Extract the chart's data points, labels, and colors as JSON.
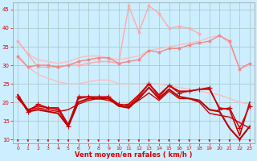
{
  "background_color": "#cceeff",
  "grid_color": "#aacccc",
  "xlabel": "Vent moyen/en rafales ( km/h )",
  "xlabel_color": "#dd0000",
  "tick_color": "#dd0000",
  "xlim": [
    -0.5,
    23.5
  ],
  "ylim": [
    9,
    47
  ],
  "yticks": [
    10,
    15,
    20,
    25,
    30,
    35,
    40,
    45
  ],
  "xticks": [
    0,
    1,
    2,
    3,
    4,
    5,
    6,
    7,
    8,
    9,
    10,
    11,
    12,
    13,
    14,
    15,
    16,
    17,
    18,
    19,
    20,
    21,
    22,
    23
  ],
  "series": [
    {
      "x": [
        0,
        1,
        2,
        3,
        4,
        5,
        6,
        7,
        8,
        9,
        10,
        11,
        12,
        13,
        14,
        15,
        16,
        17,
        18,
        19,
        20,
        21,
        22,
        23
      ],
      "y": [
        36.5,
        33.0,
        31.5,
        31.0,
        30.5,
        31.0,
        32.0,
        32.5,
        32.5,
        32.0,
        31.5,
        32.0,
        32.5,
        34.0,
        34.5,
        35.0,
        35.5,
        36.0,
        36.5,
        37.5,
        38.0,
        36.0,
        29.0,
        30.0
      ],
      "color": "#ffbbbb",
      "lw": 1.0,
      "marker": null
    },
    {
      "x": [
        0,
        1,
        2,
        3,
        4,
        5,
        6,
        7,
        8,
        9,
        10,
        11,
        12,
        13,
        14,
        15,
        16,
        17,
        18,
        19,
        20,
        21,
        22,
        23
      ],
      "y": [
        32.0,
        29.5,
        27.5,
        26.5,
        25.5,
        25.0,
        25.0,
        25.5,
        26.0,
        26.0,
        25.0,
        25.0,
        25.0,
        25.0,
        25.0,
        24.5,
        24.0,
        23.5,
        23.0,
        22.5,
        22.0,
        21.0,
        20.0,
        19.5
      ],
      "color": "#ffbbbb",
      "lw": 1.0,
      "marker": null
    },
    {
      "x": [
        0,
        1,
        2,
        3,
        4,
        5,
        6,
        7,
        8,
        9,
        10,
        11,
        12,
        13,
        14,
        15,
        16,
        17,
        18,
        19,
        20,
        21,
        22,
        23
      ],
      "y": [
        36.5,
        33.0,
        29.5,
        29.5,
        29.5,
        30.0,
        30.0,
        30.5,
        31.0,
        31.0,
        30.5,
        46.0,
        39.0,
        46.0,
        44.0,
        40.0,
        40.5,
        40.0,
        38.5,
        null,
        null,
        null,
        null,
        null
      ],
      "color": "#ffaaaa",
      "lw": 1.0,
      "marker": "o",
      "markersize": 2.0
    },
    {
      "x": [
        0,
        1,
        2,
        3,
        4,
        5,
        6,
        7,
        8,
        9,
        10,
        11,
        12,
        13,
        14,
        15,
        16,
        17,
        18,
        19,
        20,
        21,
        22,
        23
      ],
      "y": [
        32.5,
        29.5,
        30.0,
        30.0,
        29.5,
        30.0,
        31.0,
        31.5,
        32.0,
        32.0,
        30.5,
        31.0,
        31.5,
        34.0,
        33.5,
        34.5,
        34.5,
        35.5,
        36.0,
        36.5,
        38.0,
        36.5,
        29.0,
        30.5
      ],
      "color": "#ee8888",
      "lw": 1.0,
      "marker": "o",
      "markersize": 2.0
    },
    {
      "x": [
        0,
        1,
        2,
        3,
        4,
        5,
        6,
        7,
        8,
        9,
        10,
        11,
        12,
        13,
        14,
        15,
        16,
        17,
        18,
        19,
        20,
        21,
        22,
        23
      ],
      "y": [
        21.5,
        17.5,
        19.5,
        18.5,
        18.0,
        13.5,
        21.5,
        21.5,
        21.5,
        21.5,
        19.5,
        19.0,
        21.5,
        25.0,
        21.5,
        24.5,
        22.5,
        23.0,
        23.5,
        24.0,
        18.0,
        18.5,
        13.0,
        19.0
      ],
      "color": "#cc0000",
      "lw": 1.0,
      "marker": "+",
      "markersize": 4
    },
    {
      "x": [
        0,
        1,
        2,
        3,
        4,
        5,
        6,
        7,
        8,
        9,
        10,
        11,
        12,
        13,
        14,
        15,
        16,
        17,
        18,
        19,
        20,
        21,
        22,
        23
      ],
      "y": [
        21.0,
        18.0,
        19.0,
        18.5,
        18.5,
        14.0,
        21.0,
        21.5,
        21.0,
        21.5,
        19.0,
        19.5,
        22.0,
        25.0,
        22.0,
        24.5,
        23.0,
        23.0,
        23.5,
        23.5,
        18.5,
        18.0,
        11.0,
        20.0
      ],
      "color": "#cc0000",
      "lw": 1.2,
      "marker": null
    },
    {
      "x": [
        0,
        1,
        2,
        3,
        4,
        5,
        6,
        7,
        8,
        9,
        10,
        11,
        12,
        13,
        14,
        15,
        16,
        17,
        18,
        19,
        20,
        21,
        22,
        23
      ],
      "y": [
        22.0,
        17.5,
        18.0,
        17.5,
        17.0,
        13.5,
        20.0,
        21.0,
        21.0,
        21.0,
        19.0,
        18.5,
        21.0,
        24.0,
        21.0,
        23.5,
        21.5,
        21.0,
        20.5,
        18.0,
        17.5,
        13.0,
        10.0,
        13.5
      ],
      "color": "#bb0000",
      "lw": 1.5,
      "marker": null
    },
    {
      "x": [
        0,
        1,
        2,
        3,
        4,
        5,
        6,
        7,
        8,
        9,
        10,
        11,
        12,
        13,
        14,
        15,
        16,
        17,
        18,
        19,
        20,
        21,
        22,
        23
      ],
      "y": [
        22.0,
        18.0,
        18.5,
        18.0,
        17.5,
        18.0,
        19.5,
        20.5,
        21.0,
        20.5,
        19.5,
        19.0,
        20.5,
        22.5,
        20.5,
        23.0,
        21.0,
        21.0,
        20.0,
        17.0,
        16.5,
        16.0,
        14.5,
        13.0
      ],
      "color": "#cc0000",
      "lw": 1.0,
      "marker": null
    }
  ],
  "arrow_color": "#cc0000",
  "figure_bg": "#cceeff"
}
